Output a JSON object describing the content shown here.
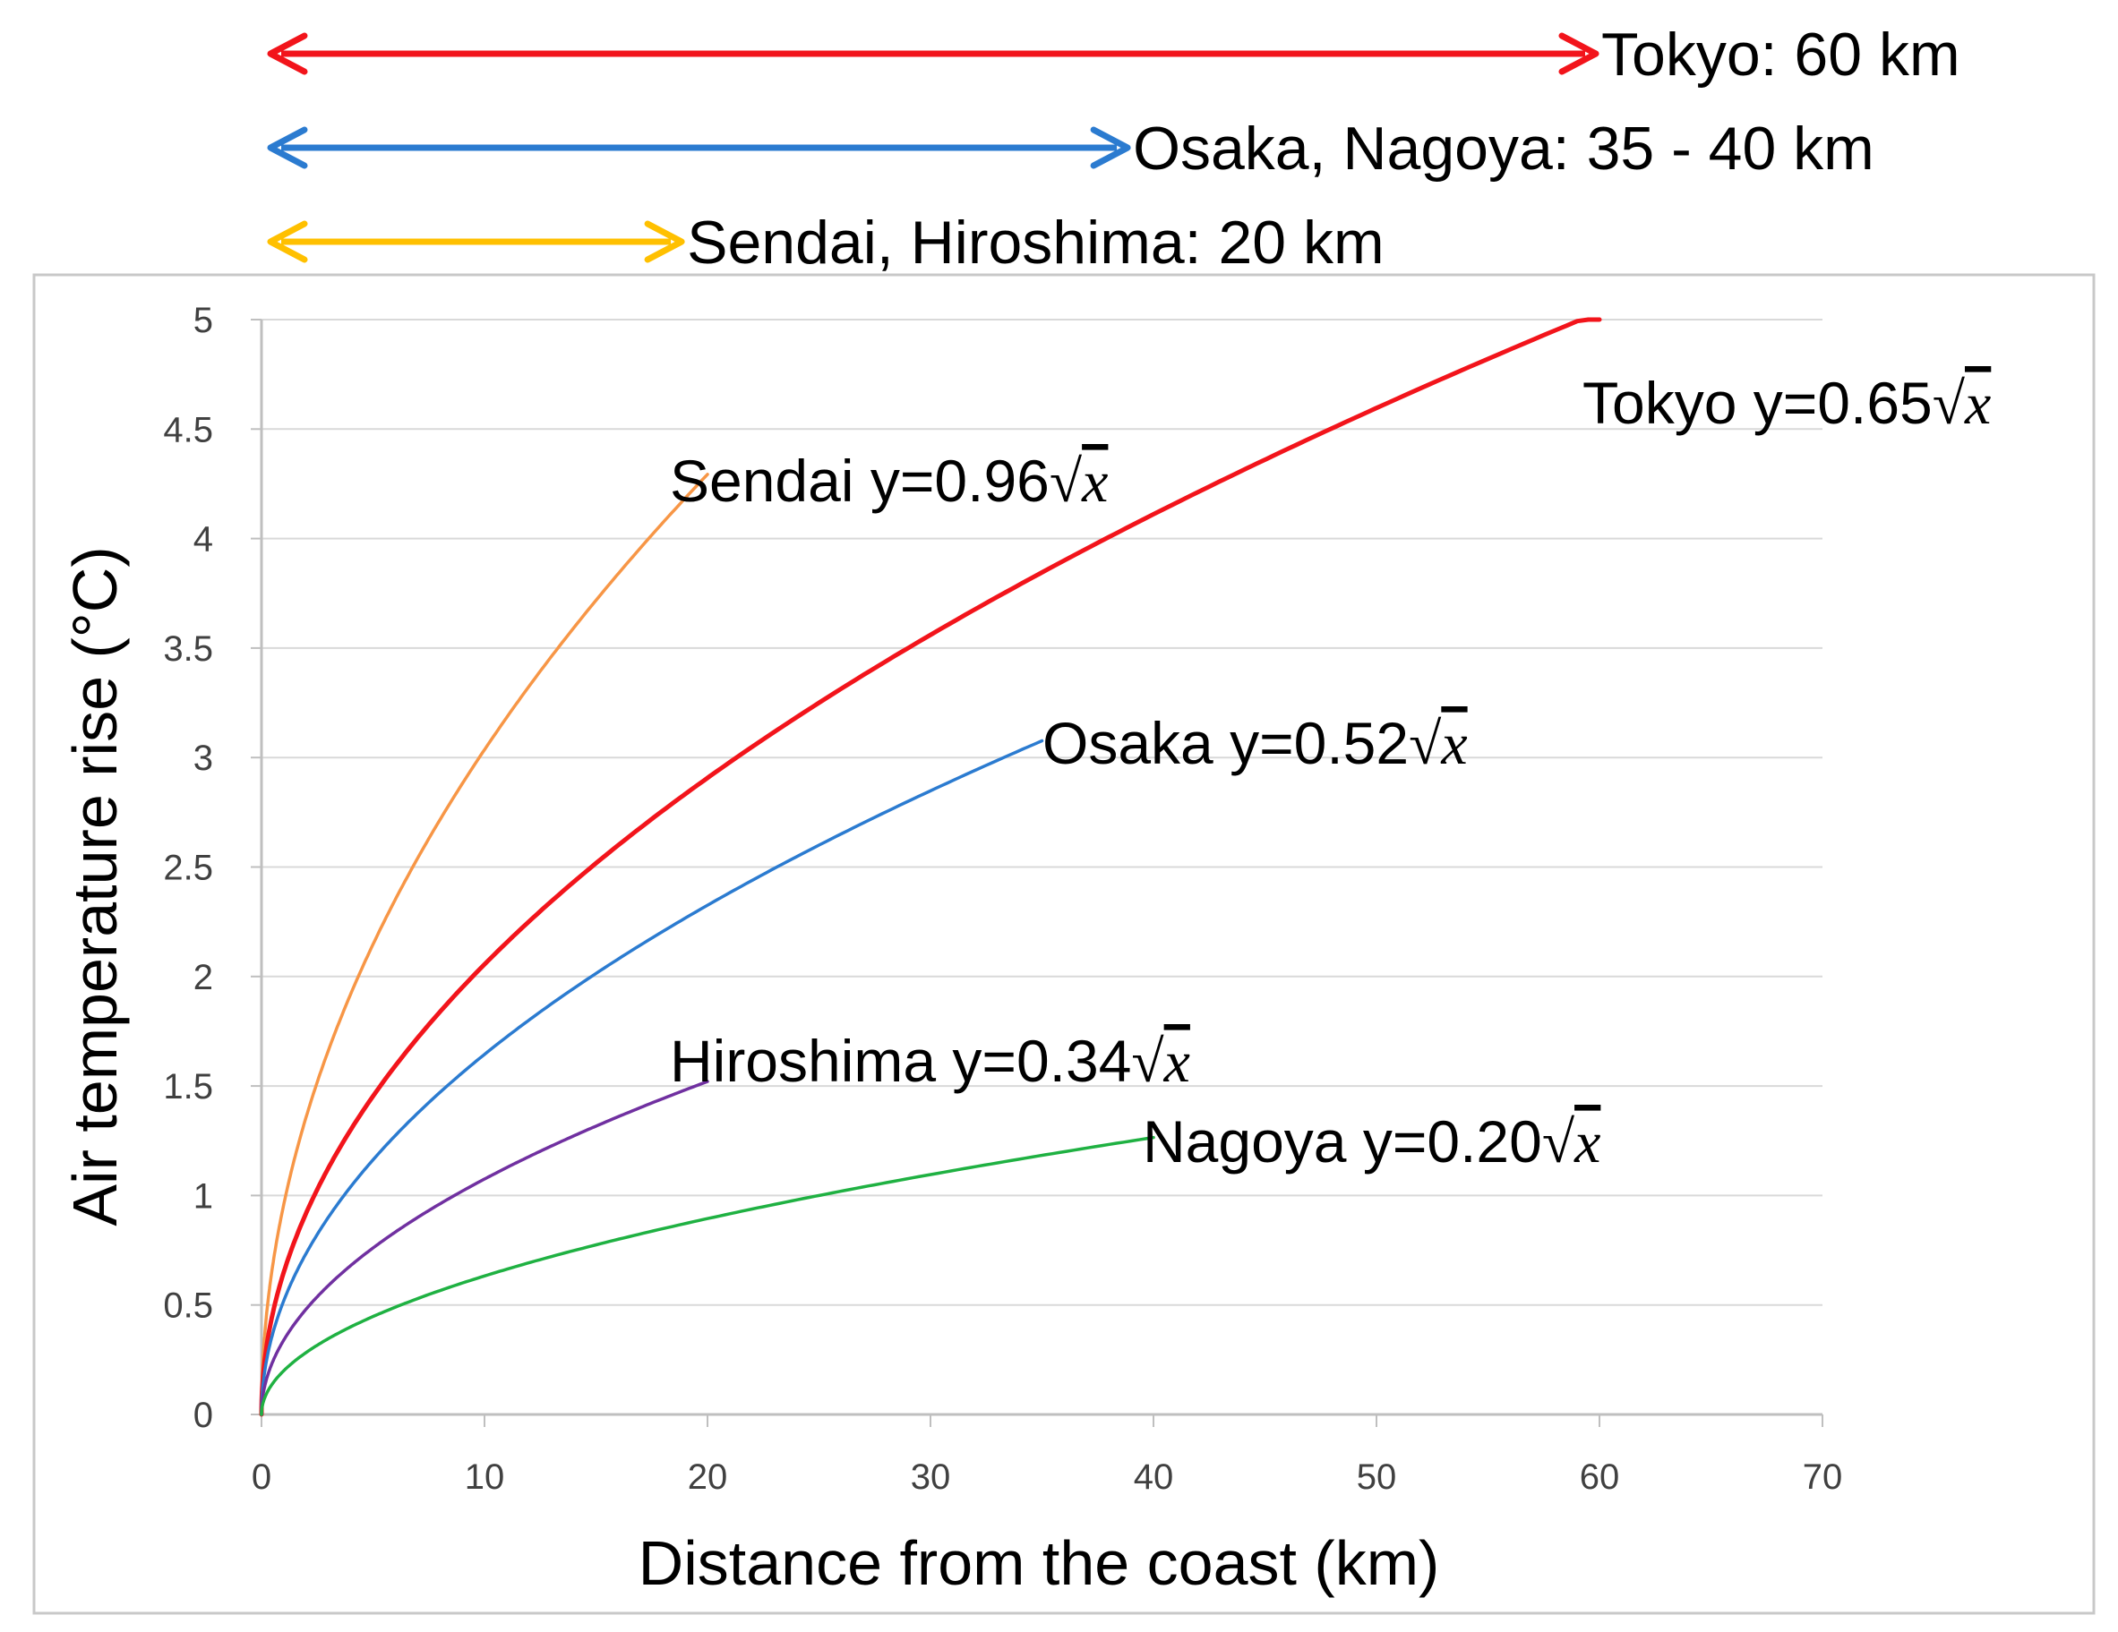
{
  "range_arrows": [
    {
      "label": "Tokyo: 60 km",
      "from_km": 0,
      "to_km": 60,
      "color": "#f2141b"
    },
    {
      "label": "Osaka, Nagoya: 35 - 40 km",
      "from_km": 0,
      "to_km": 39,
      "color": "#2b7bd0"
    },
    {
      "label": "Sendai, Hiroshima: 20 km",
      "from_km": 0,
      "to_km": 19,
      "color": "#ffc000"
    }
  ],
  "chart_data": {
    "type": "line",
    "title": "",
    "xlabel": "Distance from the coast (km)",
    "ylabel": "Air temperature rise (°C)",
    "xlim": [
      0,
      70
    ],
    "ylim": [
      0,
      5
    ],
    "x_ticks": [
      "0",
      "10",
      "20",
      "30",
      "40",
      "50",
      "60",
      "70"
    ],
    "y_ticks": [
      "0",
      "0.5",
      "1",
      "1.5",
      "2",
      "2.5",
      "3",
      "3.5",
      "4",
      "4.5",
      "5"
    ],
    "grid": "horizontal",
    "series": [
      {
        "name": "Sendai",
        "equation": "y=0.96",
        "coefficient": 0.96,
        "x_max": 20,
        "color": "#f79646",
        "x": [
          0,
          1,
          5,
          10,
          15,
          20
        ],
        "values": [
          0,
          0.96,
          2.15,
          3.04,
          3.72,
          4.29
        ]
      },
      {
        "name": "Tokyo",
        "equation": "y=0.65",
        "coefficient": 0.65,
        "x_max": 60,
        "color": "#f2141b",
        "x": [
          0,
          1,
          5,
          10,
          20,
          30,
          40,
          50,
          60
        ],
        "values": [
          0,
          0.65,
          1.45,
          2.06,
          2.91,
          3.56,
          4.11,
          4.6,
          5.03
        ]
      },
      {
        "name": "Osaka",
        "equation": "y=0.52",
        "coefficient": 0.52,
        "x_max": 35,
        "color": "#2b7bd0",
        "x": [
          0,
          1,
          5,
          10,
          20,
          30,
          35
        ],
        "values": [
          0,
          0.52,
          1.16,
          1.64,
          2.33,
          2.85,
          3.08
        ]
      },
      {
        "name": "Hiroshima",
        "equation": "y=0.34",
        "coefficient": 0.34,
        "x_max": 20,
        "color": "#7030a0",
        "x": [
          0,
          1,
          5,
          10,
          15,
          20
        ],
        "values": [
          0,
          0.34,
          0.76,
          1.08,
          1.32,
          1.52
        ]
      },
      {
        "name": "Nagoya",
        "equation": "y=0.20",
        "coefficient": 0.2,
        "x_max": 40,
        "color": "#1fb142",
        "x": [
          0,
          1,
          5,
          10,
          20,
          30,
          40
        ],
        "values": [
          0,
          0.2,
          0.45,
          0.63,
          0.89,
          1.1,
          1.26
        ]
      }
    ],
    "equation_suffix": "x"
  }
}
